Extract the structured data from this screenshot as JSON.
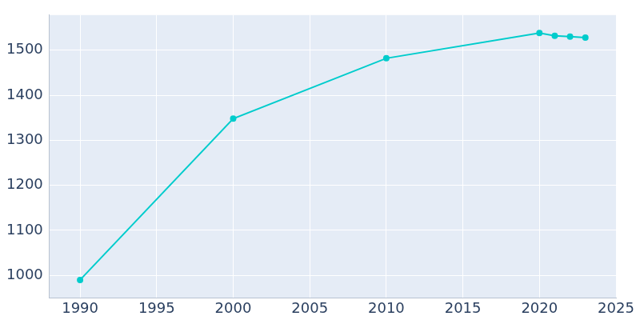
{
  "chart_data": {
    "type": "line",
    "x": [
      1990,
      2000,
      2010,
      2020,
      2021,
      2022,
      2023
    ],
    "values": [
      990,
      1348,
      1482,
      1538,
      1532,
      1530,
      1528
    ],
    "color": "#00cccc",
    "marker": "circle",
    "xlim": [
      1988,
      2025
    ],
    "ylim": [
      950,
      1578
    ],
    "xticks": [
      1990,
      1995,
      2000,
      2005,
      2010,
      2015,
      2020,
      2025
    ],
    "yticks": [
      1000,
      1100,
      1200,
      1300,
      1400,
      1500
    ],
    "grid": true
  }
}
